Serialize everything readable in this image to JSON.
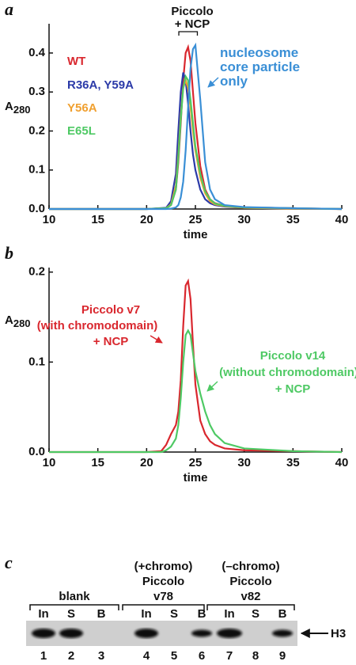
{
  "chart_data": [
    {
      "type": "line",
      "panel_label": "a",
      "ylabel": "A",
      "ylabel_sub": "280",
      "xlabel": "time",
      "annotations": [
        "Piccolo",
        "+ NCP"
      ],
      "x": [
        10,
        20,
        22,
        22.5,
        23,
        23.25,
        23.5,
        23.75,
        24,
        24.25,
        24.5,
        24.75,
        25,
        25.5,
        26,
        26.5,
        27,
        28,
        30,
        35,
        40
      ],
      "series": [
        {
          "name": "WT",
          "color": "#d9272e",
          "values": [
            0,
            0,
            0.002,
            0.01,
            0.05,
            0.12,
            0.22,
            0.33,
            0.4,
            0.415,
            0.38,
            0.3,
            0.22,
            0.11,
            0.05,
            0.025,
            0.015,
            0.008,
            0.004,
            0.002,
            0
          ]
        },
        {
          "name": "R36A, Y59A",
          "color": "#2b3aa8",
          "values": [
            0,
            0,
            0.003,
            0.02,
            0.09,
            0.2,
            0.3,
            0.35,
            0.33,
            0.27,
            0.2,
            0.14,
            0.1,
            0.05,
            0.025,
            0.015,
            0.01,
            0.006,
            0.003,
            0.001,
            0
          ]
        },
        {
          "name": "Y56A",
          "color": "#f0a030",
          "values": [
            0,
            0,
            0.002,
            0.012,
            0.06,
            0.14,
            0.24,
            0.31,
            0.33,
            0.31,
            0.26,
            0.2,
            0.15,
            0.08,
            0.04,
            0.02,
            0.012,
            0.007,
            0.003,
            0.001,
            0
          ]
        },
        {
          "name": "E65L",
          "color": "#4ec964",
          "values": [
            0,
            0,
            0.002,
            0.01,
            0.05,
            0.13,
            0.23,
            0.31,
            0.34,
            0.33,
            0.28,
            0.22,
            0.16,
            0.09,
            0.045,
            0.025,
            0.014,
            0.008,
            0.004,
            0.002,
            0
          ]
        },
        {
          "name": "nucleosome core particle only",
          "color": "#3a8fd6",
          "values": [
            0,
            0,
            0,
            0.001,
            0.004,
            0.01,
            0.03,
            0.07,
            0.15,
            0.26,
            0.36,
            0.41,
            0.42,
            0.28,
            0.12,
            0.05,
            0.025,
            0.01,
            0.005,
            0.002,
            0
          ]
        }
      ],
      "xlim": [
        10,
        40
      ],
      "xticks": [
        10,
        15,
        20,
        25,
        30,
        35,
        40
      ],
      "ylim": [
        0,
        0.475
      ],
      "yticks": [
        {
          "value": 0,
          "label": "0.0"
        },
        0.1,
        0.2,
        0.3,
        0.4
      ]
    },
    {
      "type": "line",
      "panel_label": "b",
      "ylabel": "A",
      "ylabel_sub": "280",
      "xlabel": "time",
      "x": [
        10,
        20,
        21.5,
        22,
        22.5,
        23,
        23.25,
        23.5,
        23.75,
        24,
        24.25,
        24.5,
        24.75,
        25,
        25.5,
        26,
        26.5,
        27,
        28,
        30,
        35,
        40
      ],
      "series": [
        {
          "name": "Piccolo v7",
          "note": "(with chromodomain)",
          "suffix": "+ NCP",
          "color": "#d9272e",
          "values": [
            0,
            0,
            0.001,
            0.008,
            0.02,
            0.03,
            0.045,
            0.08,
            0.14,
            0.185,
            0.19,
            0.17,
            0.12,
            0.075,
            0.035,
            0.02,
            0.012,
            0.008,
            0.004,
            0.002,
            0.001,
            0
          ]
        },
        {
          "name": "Piccolo v14",
          "note": "(without chromodomain)",
          "suffix": "+ NCP",
          "color": "#4ec964",
          "values": [
            0,
            0,
            0,
            0.002,
            0.006,
            0.015,
            0.03,
            0.06,
            0.1,
            0.13,
            0.135,
            0.13,
            0.11,
            0.09,
            0.065,
            0.045,
            0.03,
            0.02,
            0.01,
            0.004,
            0.001,
            0
          ]
        }
      ],
      "xlim": [
        10,
        40
      ],
      "xticks": [
        10,
        15,
        20,
        25,
        30,
        35,
        40
      ],
      "ylim": [
        0,
        0.205
      ],
      "yticks": [
        {
          "value": 0,
          "label": "0.0"
        },
        0.1,
        0.2
      ]
    }
  ],
  "gel": {
    "panel_label": "c",
    "groups": [
      [
        "blank"
      ],
      [
        "(+chromo)",
        "Piccolo",
        "v78"
      ],
      [
        "(–chromo)",
        "Piccolo",
        "v82"
      ]
    ],
    "lanes": [
      "In",
      "S",
      "B",
      "In",
      "S",
      "B",
      "In",
      "S",
      "B"
    ],
    "lane_numbers": [
      "1",
      "2",
      "3",
      "4",
      "5",
      "6",
      "7",
      "8",
      "9"
    ],
    "marker": "H3"
  }
}
